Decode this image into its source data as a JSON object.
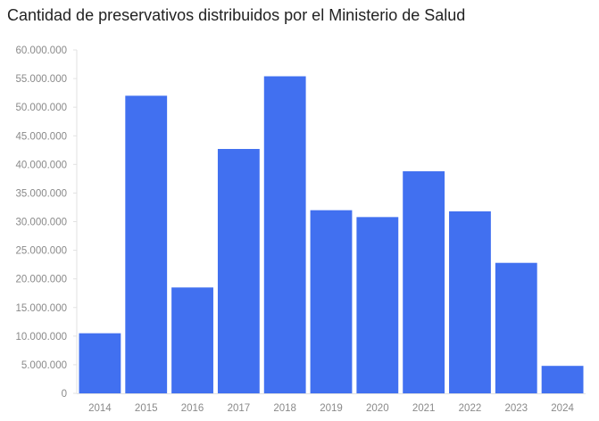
{
  "chart_data": {
    "type": "bar",
    "title": "Cantidad de preservativos distribuidos por el Ministerio de Salud",
    "xlabel": "",
    "ylabel": "",
    "categories": [
      "2014",
      "2015",
      "2016",
      "2017",
      "2018",
      "2019",
      "2020",
      "2021",
      "2022",
      "2023",
      "2024"
    ],
    "values": [
      10500000,
      52000000,
      18500000,
      42700000,
      55400000,
      32000000,
      30800000,
      38800000,
      31800000,
      22800000,
      4800000
    ],
    "ylim": [
      0,
      60000000
    ],
    "yticks": [
      0,
      5000000,
      10000000,
      15000000,
      20000000,
      25000000,
      30000000,
      35000000,
      40000000,
      45000000,
      50000000,
      55000000,
      60000000
    ],
    "ytick_labels": [
      "0",
      "5.000.000",
      "10.000.000",
      "15.000.000",
      "20.000.000",
      "25.000.000",
      "30.000.000",
      "35.000.000",
      "40.000.000",
      "45.000.000",
      "50.000.000",
      "55.000.000",
      "60.000.000"
    ],
    "grid": false,
    "legend": "none",
    "bar_color": "#4170f0",
    "axis_color": "#e2e2e2",
    "tick_label_color": "#8a8a8a"
  }
}
